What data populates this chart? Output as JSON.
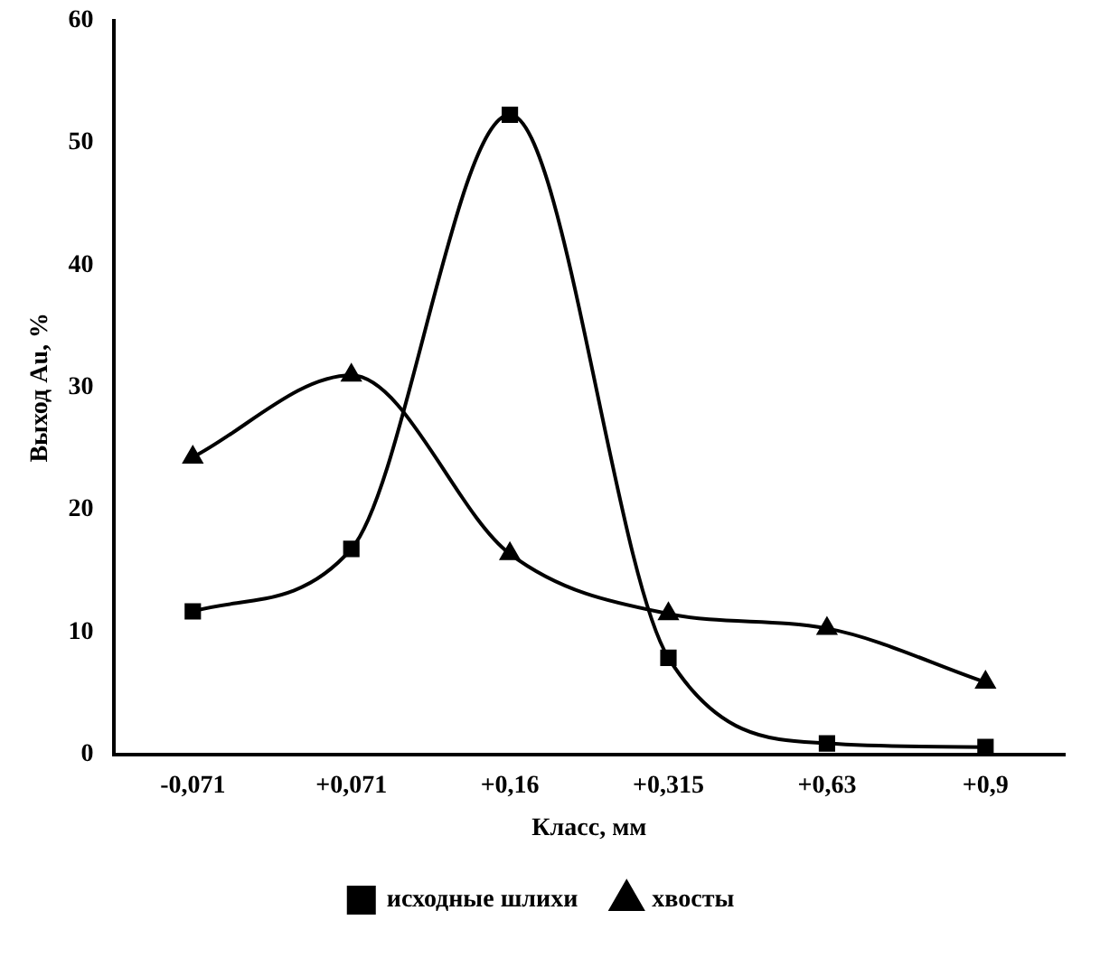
{
  "chart_data": {
    "type": "line",
    "xlabel": "Класс, мм",
    "ylabel": "Выход Au, %",
    "categories": [
      "-0,071",
      "+0,071",
      "+0,16",
      "+0,315",
      "+0,63",
      "+0,9"
    ],
    "series": [
      {
        "name": "исходные шлихи",
        "color": "#000000",
        "marker": "square",
        "values": [
          11.7,
          16.8,
          52.3,
          7.9,
          0.9,
          0.6
        ]
      },
      {
        "name": "хвосты",
        "color": "#000000",
        "marker": "triangle",
        "values": [
          24.3,
          31,
          16.4,
          11.5,
          10.3,
          5.9
        ]
      }
    ],
    "ylim": [
      0,
      60
    ],
    "yticks": [
      0,
      10,
      20,
      30,
      40,
      50,
      60
    ],
    "grid": false,
    "legend": "bottom"
  }
}
